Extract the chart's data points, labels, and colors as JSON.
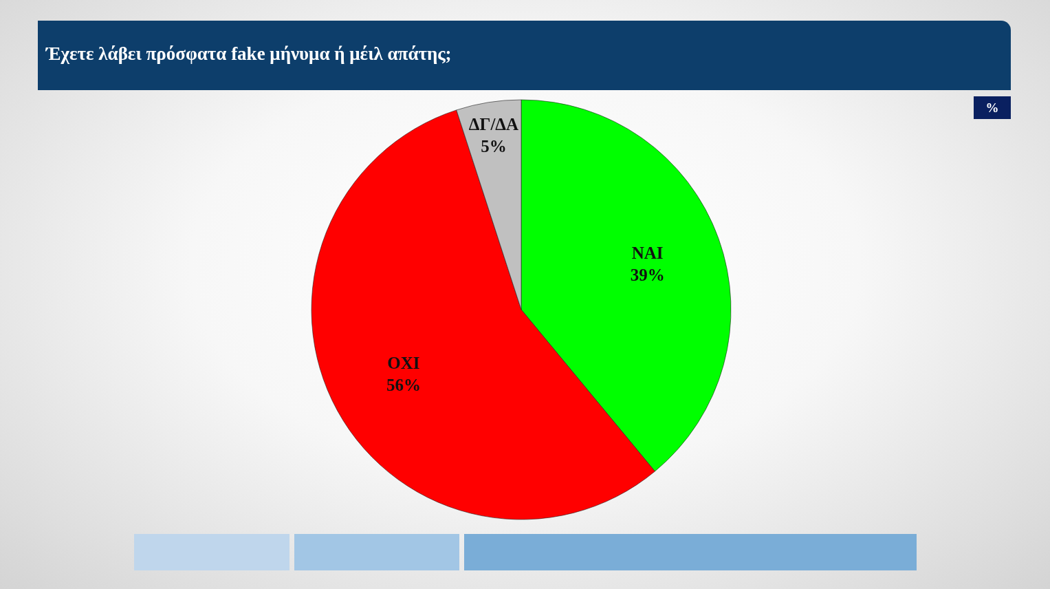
{
  "chart_data": {
    "type": "pie",
    "title": "Έχετε λάβει πρόσφατα fake μήνυμα ή μέιλ απάτης;",
    "categories": [
      "ΝΑΙ",
      "ΟΧΙ",
      "ΔΓ/ΔΑ"
    ],
    "values": [
      39,
      56,
      5
    ],
    "colors": [
      "#00ff00",
      "#ff0000",
      "#c0c0c0"
    ],
    "value_labels": [
      "39%",
      "56%",
      "5%"
    ],
    "annotations": [
      "%"
    ]
  }
}
